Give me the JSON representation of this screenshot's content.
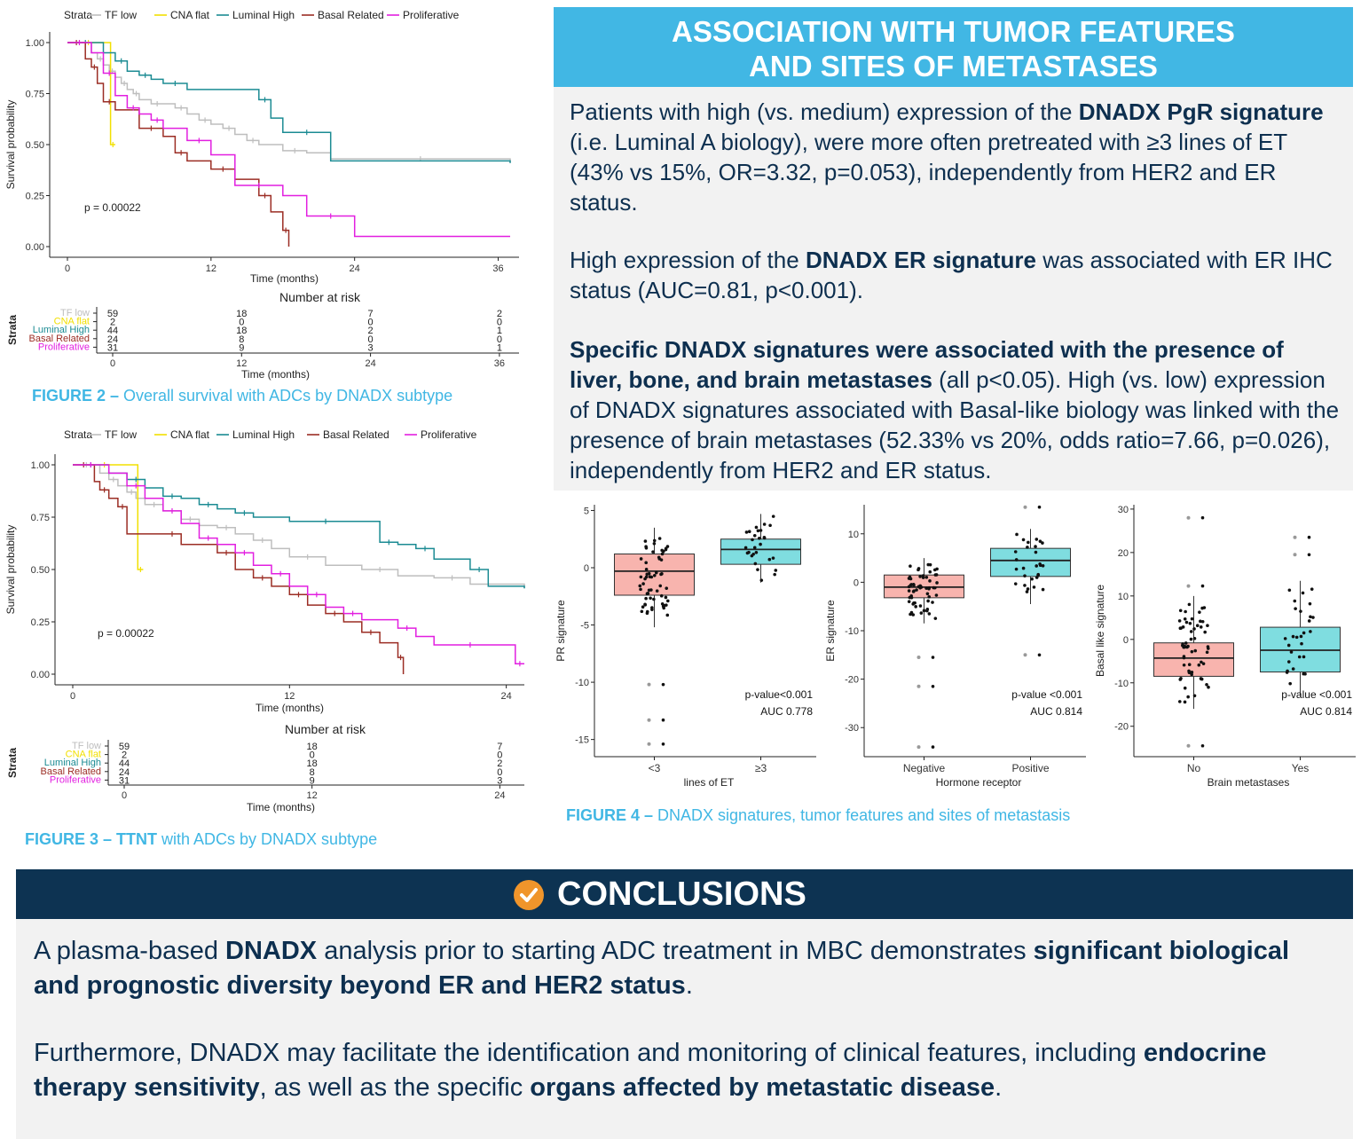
{
  "assoc": {
    "title_line1": "ASSOCIATION WITH TUMOR FEATURES",
    "title_line2": "AND SITES OF METASTASES",
    "p1_a": "Patients with high (vs. medium) expression of the ",
    "p1_b": "DNADX PgR signature",
    "p1_c": " (i.e. Luminal A biology), were more often pretreated with ≥3 lines of ET (43% vs 15%, OR=3.32, p=0.053), independently from HER2 and ER status.",
    "p2_a": "High expression of the ",
    "p2_b": "DNADX ER signature",
    "p2_c": " was associated with ER IHC status (AUC=0.81, p<0.001).",
    "p3_a": "Specific DNADX signatures were associated with the presence of liver, bone, and brain metastases",
    "p3_b": " (all p<0.05). High (vs. low) expression of DNADX signatures associated with Basal-like biology was linked with the presence of brain metastases (52.33% vs 20%, odds ratio=7.66, p=0.026), independently from HER2 and ER status."
  },
  "captions": {
    "fig2_bold": "FIGURE 2 –",
    "fig2_text": " Overall survival with ADCs by DNADX subtype",
    "fig3_bold": "FIGURE 3 – TTNT",
    "fig3_text": " with ADCs by DNADX subtype",
    "fig4_bold": "FIGURE 4 –",
    "fig4_text": " DNADX signatures, tumor features and sites of metastasis"
  },
  "conclusions": {
    "title": "CONCLUSIONS",
    "p1_a": "A plasma-based ",
    "p1_b": "DNADX",
    "p1_c": " analysis prior to starting ADC treatment in MBC demonstrates ",
    "p1_d": "significant biological and prognostic diversity beyond ER and HER2 status",
    "p1_e": ".",
    "p2_a": "Furthermore, DNADX may facilitate the identification and monitoring of clinical features, including ",
    "p2_b": "endocrine therapy sensitivity",
    "p2_c": ", as well as the specific ",
    "p2_d": "organs affected by metastatic disease",
    "p2_e": "."
  },
  "colors": {
    "TF low": "#bebebe",
    "CNA flat": "#f2e000",
    "Luminal High": "#1b8b93",
    "Basal Related": "#9b2d24",
    "Proliferative": "#e21fe0",
    "box_low": "#f8b4ae",
    "box_high": "#7fdde0"
  },
  "chart_data": [
    {
      "type": "line",
      "subtype": "kaplan-meier",
      "id": "fig2",
      "legend_title": "Strata",
      "xlabel": "Time (months)",
      "ylabel": "Survival probability",
      "xticks": [
        0,
        12,
        24,
        36
      ],
      "yticks": [
        "0.00",
        "0.25",
        "0.50",
        "0.75",
        "1.00"
      ],
      "xlim": [
        0,
        37
      ],
      "ylim": [
        0,
        1
      ],
      "pvalue": "p = 0.00022",
      "risk_title": "Number at risk",
      "risk_strata_label": "Strata",
      "series": [
        {
          "name": "TF low",
          "x": [
            0,
            2,
            2.5,
            3,
            3.5,
            4,
            4.5,
            5,
            5.5,
            6,
            7,
            8,
            9,
            10,
            11,
            12,
            13,
            14,
            15,
            16,
            18,
            20,
            22,
            37
          ],
          "y": [
            1,
            0.95,
            0.92,
            0.89,
            0.86,
            0.83,
            0.8,
            0.77,
            0.75,
            0.72,
            0.7,
            0.7,
            0.68,
            0.65,
            0.62,
            0.6,
            0.58,
            0.55,
            0.52,
            0.5,
            0.47,
            0.46,
            0.43,
            0.41
          ],
          "risk": [
            59,
            18,
            7,
            2
          ]
        },
        {
          "name": "CNA flat",
          "x": [
            0,
            3.5,
            3.6,
            4
          ],
          "y": [
            1,
            1,
            0.5,
            0.5
          ],
          "risk": [
            2,
            0,
            0,
            0
          ]
        },
        {
          "name": "Luminal High",
          "x": [
            0,
            3,
            4,
            5,
            6,
            7,
            8,
            10,
            16,
            17,
            18,
            22,
            37
          ],
          "y": [
            1,
            0.95,
            0.91,
            0.86,
            0.84,
            0.82,
            0.8,
            0.77,
            0.72,
            0.63,
            0.56,
            0.42,
            0.41
          ],
          "risk": [
            44,
            18,
            2,
            1
          ]
        },
        {
          "name": "Basal Related",
          "x": [
            0,
            1.5,
            2,
            2.5,
            3,
            4,
            6,
            8,
            9,
            10,
            12,
            14,
            16,
            17,
            18,
            18.5
          ],
          "y": [
            1,
            0.92,
            0.88,
            0.8,
            0.71,
            0.67,
            0.58,
            0.54,
            0.46,
            0.42,
            0.38,
            0.33,
            0.25,
            0.17,
            0.08,
            0
          ],
          "risk": [
            24,
            8,
            0,
            0
          ]
        },
        {
          "name": "Proliferative",
          "x": [
            0,
            2,
            3,
            4,
            5,
            6,
            7,
            8,
            10,
            12,
            14,
            18,
            20,
            24,
            37
          ],
          "y": [
            1,
            0.95,
            0.85,
            0.74,
            0.68,
            0.65,
            0.62,
            0.58,
            0.52,
            0.45,
            0.3,
            0.25,
            0.15,
            0.05,
            0.05
          ],
          "risk": [
            31,
            9,
            3,
            1
          ]
        }
      ]
    },
    {
      "type": "line",
      "subtype": "kaplan-meier",
      "id": "fig3",
      "legend_title": "Strata",
      "xlabel": "Time (months)",
      "ylabel": "Survival probability",
      "xticks": [
        0,
        12,
        24
      ],
      "yticks": [
        "0.00",
        "0.25",
        "0.50",
        "0.75",
        "1.00"
      ],
      "xlim": [
        0,
        25
      ],
      "ylim": [
        0,
        1
      ],
      "pvalue": "p = 0.00022",
      "risk_title": "Number at risk",
      "risk_strata_label": "Strata",
      "series": [
        {
          "name": "TF low",
          "x": [
            0,
            1.5,
            2,
            2.5,
            3,
            3.5,
            4,
            5,
            6,
            7,
            8,
            9,
            10,
            11,
            12,
            14,
            16,
            18,
            20,
            22,
            25
          ],
          "y": [
            1,
            0.96,
            0.93,
            0.9,
            0.87,
            0.84,
            0.81,
            0.78,
            0.74,
            0.71,
            0.7,
            0.67,
            0.64,
            0.6,
            0.56,
            0.52,
            0.5,
            0.47,
            0.46,
            0.43,
            0.41
          ],
          "risk": [
            59,
            18,
            7
          ]
        },
        {
          "name": "CNA flat",
          "x": [
            0,
            3.5,
            3.6,
            3.9
          ],
          "y": [
            1,
            1,
            0.5,
            0.5
          ],
          "risk": [
            2,
            0,
            0
          ]
        },
        {
          "name": "Luminal High",
          "x": [
            0,
            2,
            3,
            4,
            5,
            6,
            7,
            8,
            9,
            10,
            12,
            16,
            17,
            18,
            19,
            20,
            22,
            23,
            25
          ],
          "y": [
            1,
            0.96,
            0.93,
            0.89,
            0.85,
            0.84,
            0.81,
            0.79,
            0.77,
            0.75,
            0.73,
            0.73,
            0.63,
            0.62,
            0.6,
            0.55,
            0.5,
            0.42,
            0.41
          ],
          "risk": [
            44,
            18,
            2
          ]
        },
        {
          "name": "Basal Related",
          "x": [
            0,
            1.2,
            1.5,
            2,
            2.5,
            3,
            5,
            6,
            8,
            9,
            10,
            11,
            12,
            13,
            14,
            15,
            16,
            17,
            18,
            18.3
          ],
          "y": [
            1,
            0.92,
            0.88,
            0.84,
            0.8,
            0.67,
            0.67,
            0.62,
            0.58,
            0.5,
            0.46,
            0.42,
            0.38,
            0.33,
            0.29,
            0.25,
            0.2,
            0.15,
            0.08,
            0
          ],
          "risk": [
            24,
            8,
            0
          ]
        },
        {
          "name": "Proliferative",
          "x": [
            0,
            2,
            3,
            4,
            5,
            6,
            7,
            8,
            9,
            10,
            11,
            12,
            13,
            14,
            15,
            16,
            18,
            19,
            20,
            24,
            24.5,
            25
          ],
          "y": [
            1,
            0.96,
            0.9,
            0.84,
            0.78,
            0.72,
            0.65,
            0.62,
            0.58,
            0.52,
            0.48,
            0.42,
            0.38,
            0.32,
            0.29,
            0.26,
            0.22,
            0.18,
            0.14,
            0.14,
            0.05,
            0.05
          ],
          "risk": [
            31,
            9,
            3
          ]
        }
      ]
    },
    {
      "type": "box",
      "id": "fig4a",
      "xlabel": "lines of ET",
      "ylabel": "PR signature",
      "categories": [
        "<3",
        "≥3"
      ],
      "ylim": [
        -16.5,
        5.5
      ],
      "yticks": [
        -15,
        -10,
        -5,
        0,
        5
      ],
      "boxes": [
        {
          "q1": -2.4,
          "median": -0.3,
          "q3": 1.2,
          "whisker_low": -5.2,
          "whisker_high": 3.5,
          "outliers": [
            -10.2,
            -13.3,
            -15.4
          ]
        },
        {
          "q1": 0.3,
          "median": 1.6,
          "q3": 2.5,
          "whisker_low": -1.3,
          "whisker_high": 4.7,
          "outliers": []
        }
      ],
      "annotations": [
        "p-value<0.001",
        "AUC  0.778"
      ]
    },
    {
      "type": "box",
      "id": "fig4b",
      "xlabel": "Hormone receptor",
      "ylabel": "ER signature",
      "categories": [
        "Negative",
        "Positive"
      ],
      "ylim": [
        -36,
        16
      ],
      "yticks": [
        -30,
        -20,
        -10,
        0,
        10
      ],
      "boxes": [
        {
          "q1": -3.2,
          "median": -1.0,
          "q3": 1.5,
          "whisker_low": -8.5,
          "whisker_high": 5.0,
          "outliers": [
            -15.5,
            -21.5,
            -34.0
          ]
        },
        {
          "q1": 1.2,
          "median": 4.5,
          "q3": 7.0,
          "whisker_low": -4.5,
          "whisker_high": 11.0,
          "outliers": [
            15.5,
            -15.0
          ]
        }
      ],
      "annotations": [
        "p-value <0.001",
        "AUC 0.814"
      ]
    },
    {
      "type": "box",
      "id": "fig4c",
      "xlabel": "Brain metastases",
      "ylabel": "Basal like signature",
      "categories": [
        "No",
        "Yes"
      ],
      "ylim": [
        -27,
        31
      ],
      "yticks": [
        -20,
        -10,
        0,
        10,
        20,
        30
      ],
      "boxes": [
        {
          "q1": -8.5,
          "median": -4.3,
          "q3": -0.8,
          "whisker_low": -16.0,
          "whisker_high": 10.0,
          "outliers": [
            12.3,
            28.0,
            -24.5
          ]
        },
        {
          "q1": -7.5,
          "median": -2.5,
          "q3": 2.8,
          "whisker_low": -13.0,
          "whisker_high": 13.5,
          "outliers": [
            19.5,
            23.5
          ]
        }
      ],
      "annotations": [
        "p-value <0.001",
        "AUC 0.814"
      ]
    }
  ]
}
